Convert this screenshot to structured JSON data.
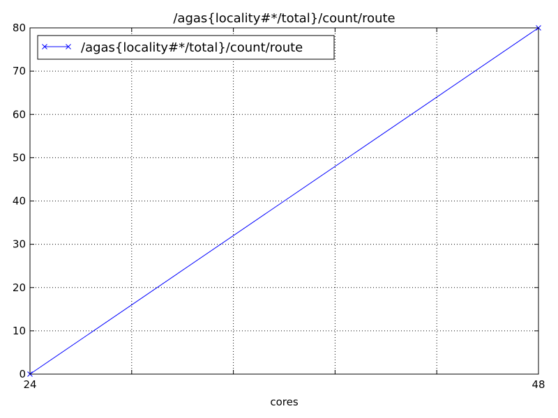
{
  "chart_data": {
    "type": "line",
    "title": "/agas{locality#*/total}/count/route",
    "xlabel": "cores",
    "ylabel": "",
    "xlim": [
      24,
      48
    ],
    "ylim": [
      0,
      80
    ],
    "xticks": [
      24,
      48
    ],
    "xtick_labels": [
      "24",
      "48"
    ],
    "yticks": [
      0,
      10,
      20,
      30,
      40,
      50,
      60,
      70,
      80
    ],
    "ytick_labels": [
      "0",
      "10",
      "20",
      "30",
      "40",
      "50",
      "60",
      "70",
      "80"
    ],
    "grid": true,
    "legend_position": "top-left",
    "series": [
      {
        "name": "/agas{locality#*/total}/count/route",
        "color": "#0000ff",
        "marker": "x",
        "x": [
          24,
          48
        ],
        "y": [
          0,
          80
        ]
      }
    ]
  }
}
